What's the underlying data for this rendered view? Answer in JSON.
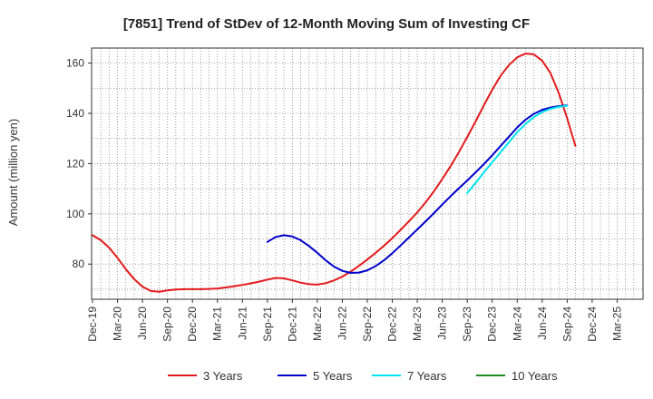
{
  "chart_data": {
    "type": "line",
    "title": "[7851]  Trend of StDev of 12-Month Moving Sum of Investing CF",
    "xlabel": "",
    "ylabel": "Amount (million yen)",
    "ylim": [
      66,
      166
    ],
    "yticks": [
      80,
      100,
      120,
      140,
      160
    ],
    "x_categories": [
      "Dec-19",
      "Mar-20",
      "Jun-20",
      "Sep-20",
      "Dec-20",
      "Mar-21",
      "Jun-21",
      "Sep-21",
      "Dec-21",
      "Mar-22",
      "Jun-22",
      "Sep-22",
      "Dec-22",
      "Mar-23",
      "Jun-23",
      "Sep-23",
      "Dec-23",
      "Mar-24",
      "Jun-24",
      "Sep-24",
      "Dec-24",
      "Mar-25"
    ],
    "x_tick_labels": [
      "Dec-19",
      "Mar-20",
      "Jun-20",
      "Sep-20",
      "Dec-20",
      "Mar-21",
      "Jun-21",
      "Sep-21",
      "Dec-21",
      "Mar-22",
      "Jun-22",
      "Sep-22",
      "Dec-22",
      "Mar-23",
      "Jun-23",
      "Sep-23",
      "Dec-23",
      "Mar-24",
      "Jun-24",
      "Sep-24",
      "Dec-24",
      "Mar-25"
    ],
    "grid": true,
    "legend_position": "bottom",
    "series": [
      {
        "name": "3 Years",
        "color": "#e31a1c",
        "start_index": 0,
        "values": [
          91.5,
          89.5,
          86.5,
          82.5,
          78.0,
          74.0,
          71.0,
          69.3,
          69.0,
          69.5,
          69.9,
          70.0,
          70.0,
          70.0,
          70.1,
          70.3,
          70.7,
          71.2,
          71.7,
          72.3,
          73.0,
          73.8,
          74.5,
          74.3,
          73.5,
          72.6,
          72.0,
          71.8,
          72.4,
          73.5,
          75.0,
          77.0,
          79.3,
          81.8,
          84.5,
          87.3,
          90.3,
          93.6,
          97.0,
          100.6,
          104.6,
          109.0,
          113.8,
          119.0,
          124.6,
          130.6,
          136.8,
          143.2,
          149.4,
          154.9,
          159.2,
          162.3,
          163.8,
          163.5,
          161.0,
          156.0,
          148.0,
          138.0,
          127.0
        ]
      },
      {
        "name": "5 Years",
        "color": "#0000cc",
        "start_index": 21,
        "values": [
          88.8,
          90.8,
          91.5,
          91.0,
          89.5,
          87.2,
          84.5,
          81.5,
          79.0,
          77.3,
          76.5,
          76.6,
          77.5,
          79.2,
          81.5,
          84.3,
          87.4,
          90.6,
          93.8,
          97.0,
          100.3,
          103.7,
          107.0,
          110.2,
          113.3,
          116.5,
          119.8,
          123.3,
          127.0,
          130.7,
          134.4,
          137.5,
          139.8,
          141.4,
          142.3,
          142.9,
          143.2
        ]
      },
      {
        "name": "7 Years",
        "color": "#00e5ee",
        "start_index": 45,
        "values": [
          108.3,
          112.3,
          116.5,
          120.5,
          124.5,
          128.5,
          132.5,
          135.8,
          138.5,
          140.5,
          141.8,
          142.6,
          143.0
        ]
      },
      {
        "name": "10 Years",
        "color": "#228b22",
        "start_index": 0,
        "values": []
      }
    ]
  }
}
